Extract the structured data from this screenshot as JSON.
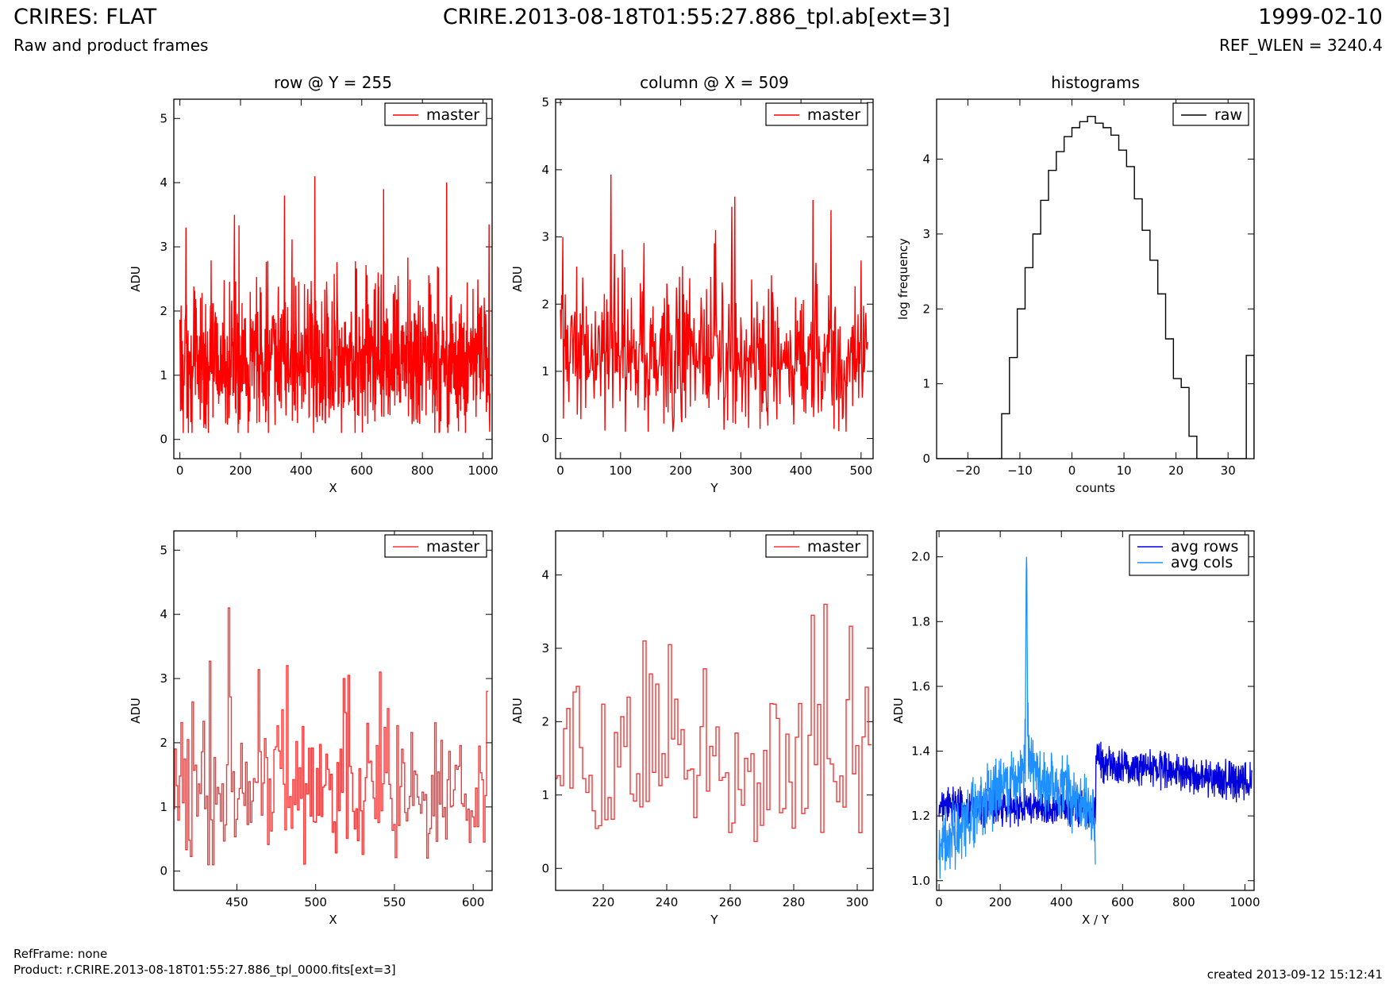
{
  "header": {
    "title": "CRIRES: FLAT",
    "subtitle": "Raw and product frames",
    "center": "CRIRE.2013-08-18T01:55:27.886_tpl.ab[ext=3]",
    "date": "1999-02-10",
    "ref_wlen": "REF_WLEN = 3240.4"
  },
  "footer": {
    "refframe": "RefFrame: none",
    "product": "Product: r.CRIRE.2013-08-18T01:55:27.886_tpl_0000.fits[ext=3]",
    "created": "created 2013-09-12 15:12:41"
  },
  "colors": {
    "master": "#ff0000",
    "master_zoom": "#ff3333",
    "hist": "#000000",
    "avg_rows": "#0000dd",
    "avg_cols": "#1e90ff"
  },
  "chart_data": [
    {
      "id": "row",
      "type": "line",
      "title": "row @ Y = 255",
      "xlabel": "X",
      "ylabel": "ADU",
      "xlim": [
        -20,
        1030
      ],
      "ylim": [
        -0.3,
        5.3
      ],
      "xticks": [
        0,
        200,
        400,
        600,
        800,
        1000
      ],
      "yticks": [
        0,
        1,
        2,
        3,
        4,
        5
      ],
      "legend": "top-right",
      "series": [
        {
          "name": "master",
          "color": "#ff0000",
          "n": 1024,
          "mean": 1.2,
          "min": 0.1,
          "max": 4.1,
          "peaks": [
            [
              445,
              4.1
            ],
            [
              880,
              4.0
            ],
            [
              672,
              3.9
            ],
            [
              345,
              3.8
            ],
            [
              180,
              3.5
            ],
            [
              1020,
              3.35
            ],
            [
              20,
              3.3
            ]
          ]
        }
      ]
    },
    {
      "id": "col",
      "type": "line",
      "title": "column @ X = 509",
      "xlabel": "Y",
      "ylabel": "ADU",
      "xlim": [
        -8,
        520
      ],
      "ylim": [
        -0.3,
        5.05
      ],
      "xticks": [
        0,
        100,
        200,
        300,
        400,
        500
      ],
      "yticks": [
        0,
        1,
        2,
        3,
        4,
        5
      ],
      "legend": "top-right",
      "series": [
        {
          "name": "master",
          "color": "#ff0000",
          "n": 512,
          "mean": 1.2,
          "min": 0.1,
          "max": 3.95,
          "peaks": [
            [
              84,
              3.93
            ],
            [
              290,
              3.6
            ],
            [
              420,
              3.55
            ],
            [
              285,
              3.45
            ],
            [
              450,
              3.4
            ],
            [
              500,
              2.65
            ]
          ]
        }
      ]
    },
    {
      "id": "hist",
      "type": "step",
      "title": "histograms",
      "xlabel": "counts",
      "ylabel": "log frequency",
      "xlim": [
        -26,
        35
      ],
      "ylim": [
        0,
        4.8
      ],
      "xticks": [
        -20,
        -10,
        0,
        10,
        20,
        30
      ],
      "yticks": [
        0,
        1,
        2,
        3,
        4
      ],
      "legend": "top-right",
      "series": [
        {
          "name": "raw",
          "color": "#000000",
          "bins": [
            [
              -13.5,
              -12,
              0.6
            ],
            [
              -12,
              -10.5,
              1.35
            ],
            [
              -10.5,
              -9,
              2.0
            ],
            [
              -9,
              -7.5,
              2.55
            ],
            [
              -7.5,
              -6,
              3.0
            ],
            [
              -6,
              -4.5,
              3.45
            ],
            [
              -4.5,
              -3,
              3.85
            ],
            [
              -3,
              -1.5,
              4.1
            ],
            [
              -1.5,
              0,
              4.3
            ],
            [
              0,
              1.5,
              4.42
            ],
            [
              1.5,
              3,
              4.5
            ],
            [
              3,
              4.5,
              4.57
            ],
            [
              4.5,
              6,
              4.48
            ],
            [
              6,
              7.5,
              4.42
            ],
            [
              7.5,
              9,
              4.32
            ],
            [
              9,
              10.5,
              4.12
            ],
            [
              10.5,
              12,
              3.9
            ],
            [
              12,
              13.5,
              3.47
            ],
            [
              13.5,
              15,
              3.05
            ],
            [
              15,
              16.5,
              2.65
            ],
            [
              16.5,
              18,
              2.2
            ],
            [
              18,
              19.5,
              1.6
            ],
            [
              19.5,
              21,
              1.07
            ],
            [
              21,
              22.5,
              0.95
            ],
            [
              22.5,
              24,
              0.3
            ],
            [
              33.5,
              35,
              1.38
            ]
          ]
        }
      ]
    },
    {
      "id": "rowzoom",
      "type": "step",
      "title": "",
      "xlabel": "X",
      "ylabel": "ADU",
      "xlim": [
        410,
        612
      ],
      "ylim": [
        -0.3,
        5.3
      ],
      "xticks": [
        450,
        500,
        550,
        600
      ],
      "yticks": [
        0,
        1,
        2,
        3,
        4,
        5
      ],
      "legend": "top-right",
      "series": [
        {
          "name": "master",
          "color": "#ff3333",
          "n": 200,
          "mean": 1.2,
          "min": 0.1,
          "max": 4.1,
          "peaks": [
            [
              445,
              4.1
            ],
            [
              433,
              3.27
            ],
            [
              482,
              3.2
            ],
            [
              521,
              3.05
            ],
            [
              541,
              3.1
            ],
            [
              518,
              3.0
            ],
            [
              609,
              2.8
            ]
          ]
        }
      ]
    },
    {
      "id": "colzoom",
      "type": "step",
      "title": "",
      "xlabel": "Y",
      "ylabel": "ADU",
      "xlim": [
        205,
        305
      ],
      "ylim": [
        -0.3,
        4.6
      ],
      "xticks": [
        220,
        240,
        260,
        280,
        300
      ],
      "yticks": [
        0,
        1,
        2,
        3,
        4
      ],
      "legend": "top-right",
      "series": [
        {
          "name": "master",
          "color": "#ff3333",
          "n": 100,
          "mean": 1.4,
          "min": 0.1,
          "max": 3.6,
          "peaks": [
            [
              290,
              3.6
            ],
            [
              286,
              3.45
            ],
            [
              298,
              3.3
            ],
            [
              233,
              3.1
            ],
            [
              241,
              3.05
            ],
            [
              252,
              2.72
            ],
            [
              303,
              2.47
            ]
          ]
        }
      ]
    },
    {
      "id": "avg",
      "type": "line",
      "title": "",
      "xlabel": "X / Y",
      "ylabel": "ADU",
      "xlim": [
        -8,
        1030
      ],
      "ylim": [
        0.97,
        2.08
      ],
      "xticks": [
        0,
        200,
        400,
        600,
        800,
        1000
      ],
      "yticks": [
        1.0,
        1.2,
        1.4,
        1.6,
        1.8,
        2.0
      ],
      "legend": "top-right",
      "series": [
        {
          "name": "avg rows",
          "color": "#0000dd",
          "n": 1024,
          "levels": [
            [
              0,
              1.23
            ],
            [
              512,
              1.22
            ],
            [
              513,
              1.37
            ],
            [
              1023,
              1.3
            ]
          ]
        },
        {
          "name": "avg cols",
          "color": "#1e90ff",
          "n": 512,
          "levels": [
            [
              0,
              1.1
            ],
            [
              120,
              1.22
            ],
            [
              280,
              1.35
            ],
            [
              400,
              1.28
            ],
            [
              511,
              1.2
            ]
          ],
          "spike": [
            286,
            2.0
          ],
          "end": [
            511,
            1.05
          ]
        }
      ]
    }
  ]
}
